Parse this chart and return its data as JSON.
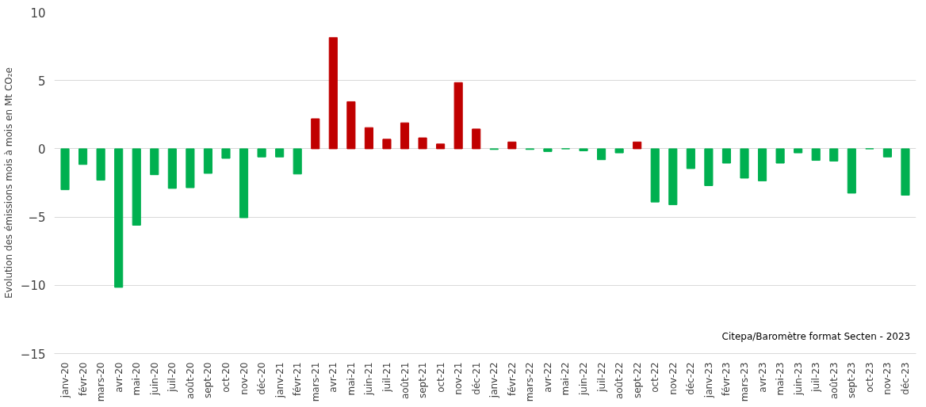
{
  "chart_data": {
    "type": "bar",
    "ylabel": "Evolution des émissions mois à mois en Mt CO₂e",
    "categories": [
      "janv-20",
      "févr-20",
      "mars-20",
      "avr-20",
      "mai-20",
      "juin-20",
      "juil-20",
      "août-20",
      "sept-20",
      "oct-20",
      "nov-20",
      "déc-20",
      "janv-21",
      "févr-21",
      "mars-21",
      "avr-21",
      "mai-21",
      "juin-21",
      "juil-21",
      "août-21",
      "sept-21",
      "oct-21",
      "nov-21",
      "déc-21",
      "janv-22",
      "févr-22",
      "mars-22",
      "avr-22",
      "mai-22",
      "juin-22",
      "juil-22",
      "août-22",
      "sept-22",
      "oct-22",
      "nov-22",
      "déc-22",
      "janv-23",
      "févr-23",
      "mars-23",
      "avr-23",
      "mai-23",
      "juin-23",
      "juil-23",
      "août-23",
      "sept-23",
      "oct-23",
      "nov-23",
      "déc-23"
    ],
    "values": [
      -3.0,
      -1.15,
      -2.3,
      -10.15,
      -5.6,
      -1.9,
      -2.9,
      -2.85,
      -1.8,
      -0.7,
      -5.05,
      -0.6,
      -0.6,
      -1.85,
      2.2,
      8.15,
      3.45,
      1.55,
      0.7,
      1.9,
      0.8,
      0.35,
      4.85,
      1.45,
      -0.05,
      0.5,
      -0.05,
      -0.2,
      0,
      -0.15,
      -0.8,
      -0.3,
      0.5,
      -3.9,
      -4.1,
      -1.45,
      -2.7,
      -1.05,
      -2.15,
      -2.35,
      -1.05,
      -0.3,
      -0.85,
      -0.9,
      -3.25,
      0,
      -0.6,
      -3.4
    ],
    "colors": [
      "#00b050",
      "#00b050",
      "#00b050",
      "#00b050",
      "#00b050",
      "#00b050",
      "#00b050",
      "#00b050",
      "#00b050",
      "#00b050",
      "#00b050",
      "#00b050",
      "#00b050",
      "#00b050",
      "#c00000",
      "#c00000",
      "#c00000",
      "#c00000",
      "#c00000",
      "#c00000",
      "#c00000",
      "#c00000",
      "#c00000",
      "#c00000",
      "#00b050",
      "#c00000",
      "#00b050",
      "#00b050",
      "#00b050",
      "#00b050",
      "#00b050",
      "#00b050",
      "#c00000",
      "#00b050",
      "#00b050",
      "#00b050",
      "#00b050",
      "#00b050",
      "#00b050",
      "#00b050",
      "#00b050",
      "#00b050",
      "#00b050",
      "#00b050",
      "#00b050",
      "#00b050",
      "#00b050",
      "#00b050"
    ],
    "ylim": [
      -15,
      10
    ],
    "yticks": [
      -15,
      -10,
      -5,
      0,
      5,
      10
    ],
    "grid": "y",
    "annotations": [
      "Citepa/Baromètre format Secten - 2023"
    ]
  }
}
